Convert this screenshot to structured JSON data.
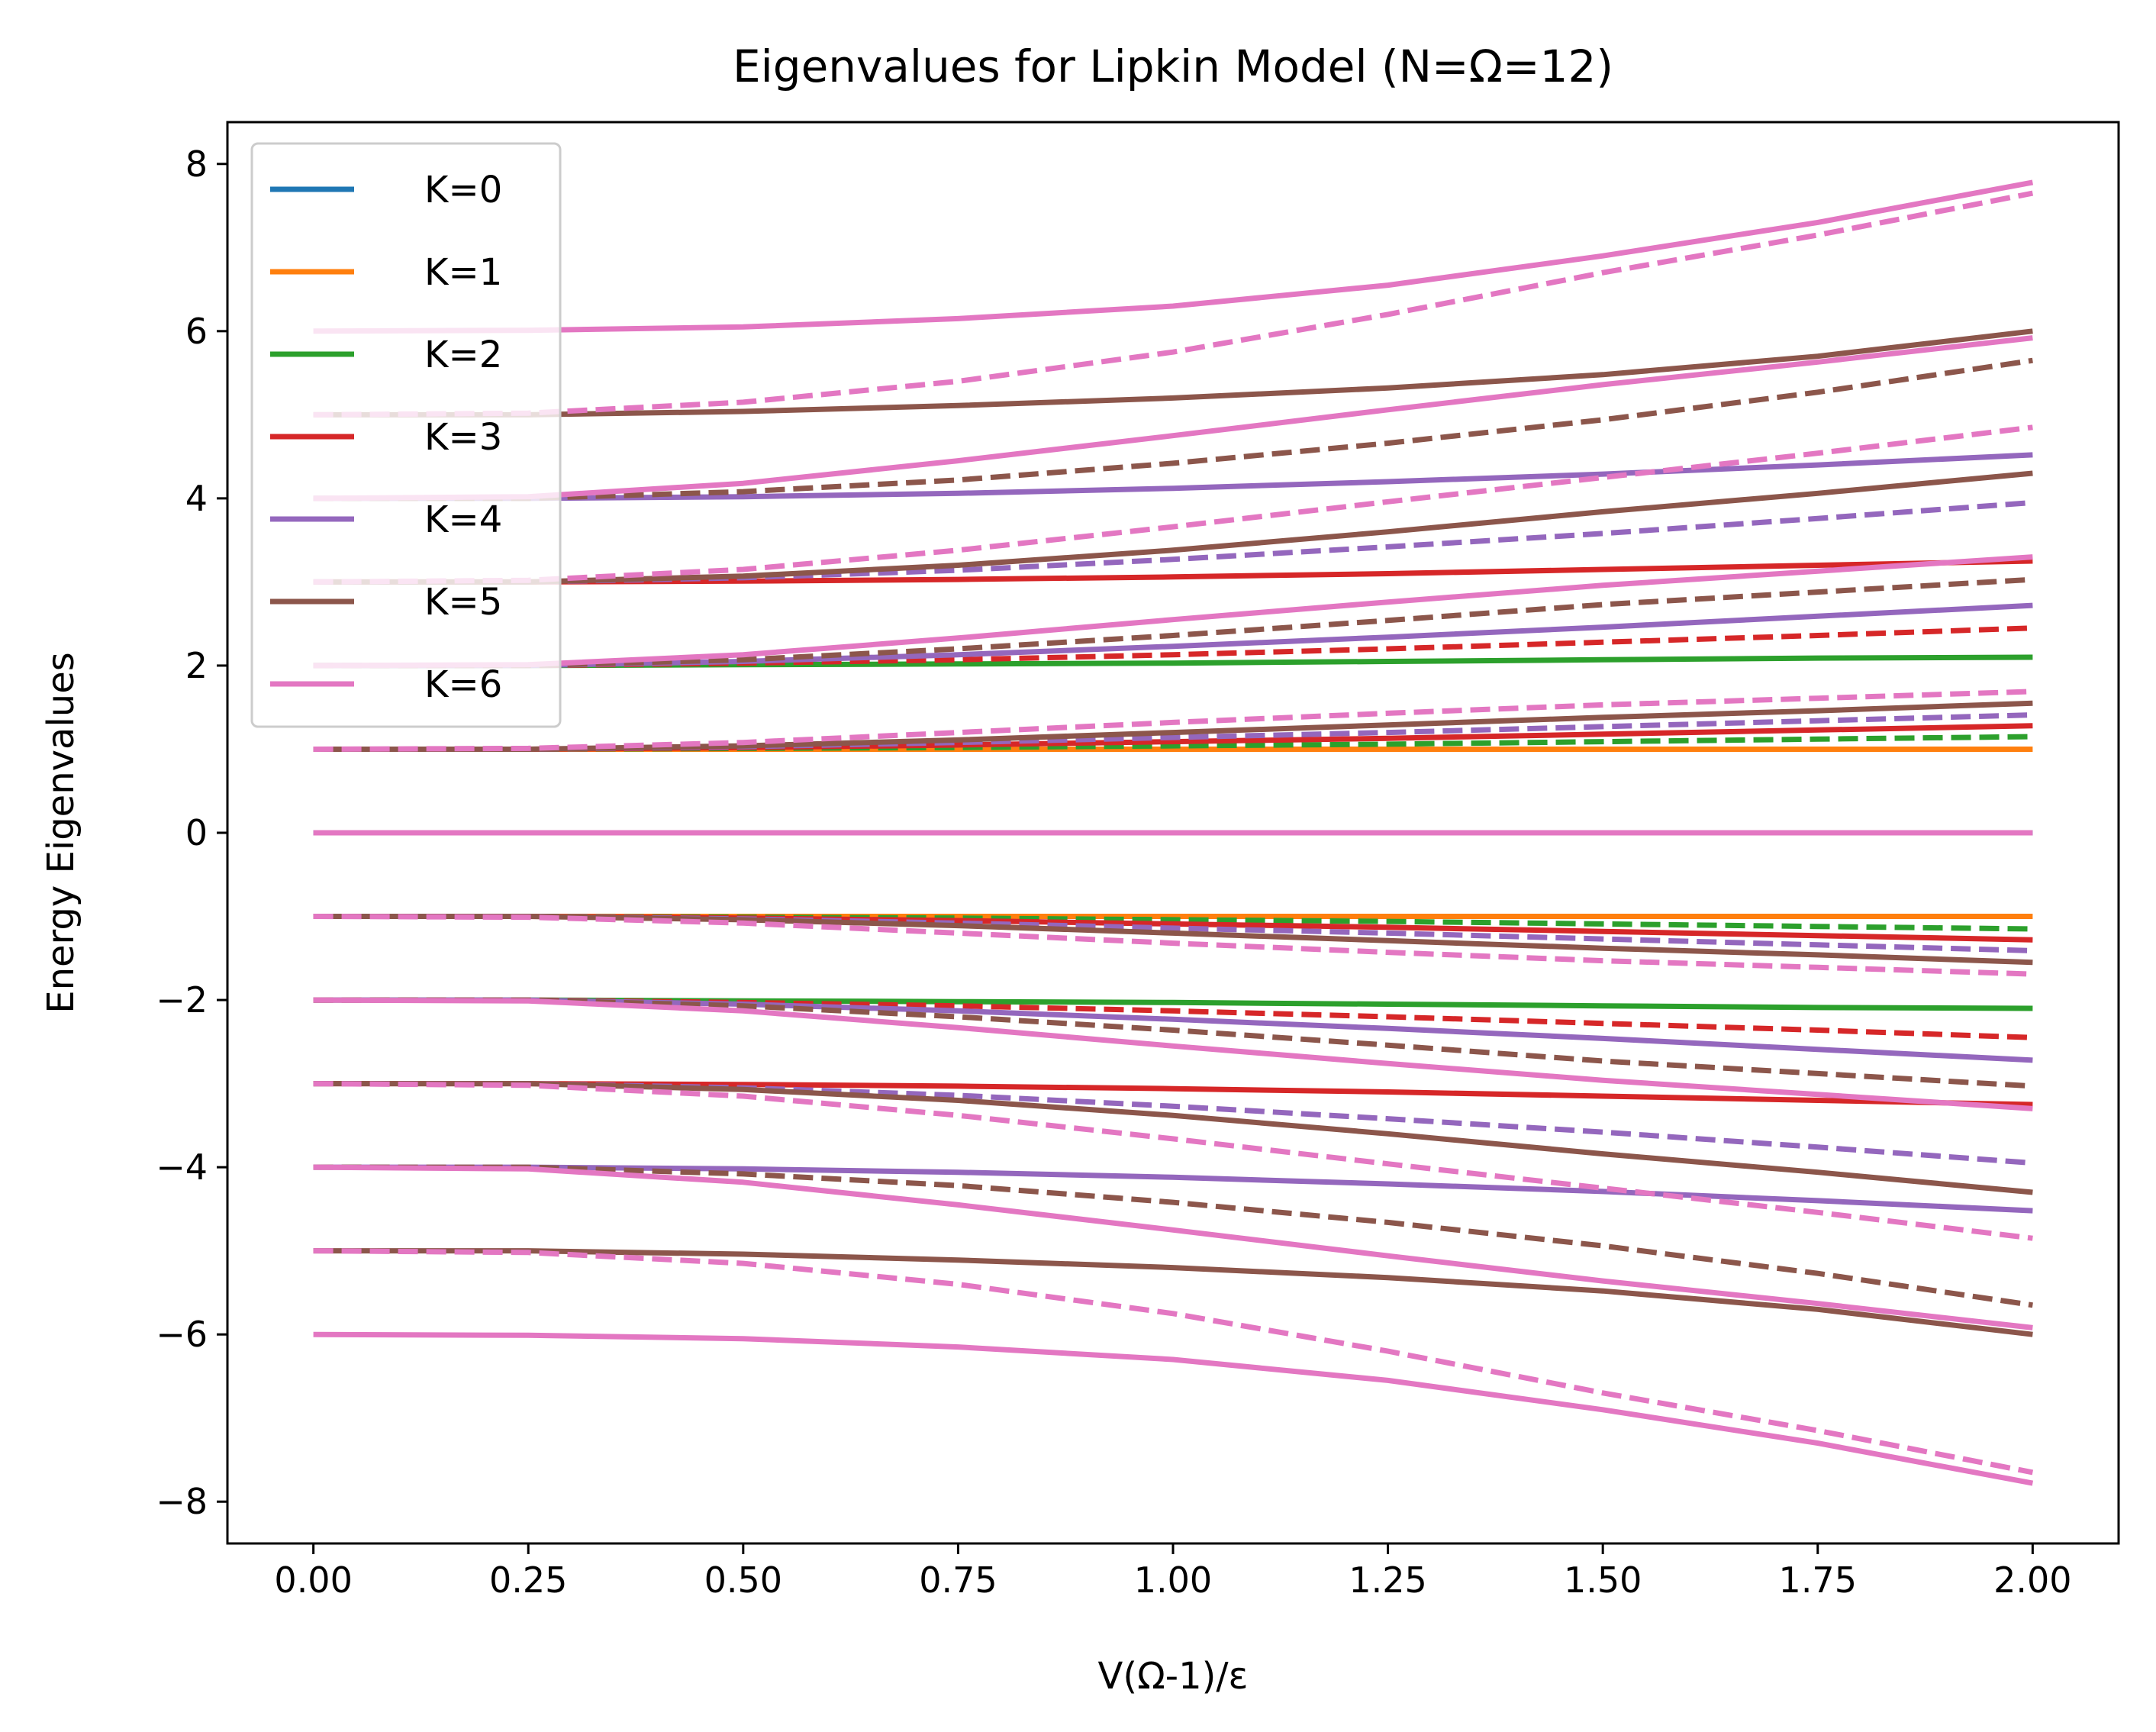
{
  "chart_data": {
    "type": "line",
    "title": "Eigenvalues for Lipkin Model (N=Ω=12)",
    "xlabel": "V(Ω-1)/ε",
    "ylabel": "Energy Eigenvalues",
    "xlim": [
      -0.1,
      2.1
    ],
    "ylim": [
      -8.5,
      8.5
    ],
    "x_ticks": [
      0.0,
      0.25,
      0.5,
      0.75,
      1.0,
      1.25,
      1.5,
      1.75,
      2.0
    ],
    "x_tick_labels": [
      "0.00",
      "0.25",
      "0.50",
      "0.75",
      "1.00",
      "1.25",
      "1.50",
      "1.75",
      "2.00"
    ],
    "y_ticks": [
      -8,
      -6,
      -4,
      -2,
      0,
      2,
      4,
      6,
      8
    ],
    "y_tick_labels": [
      "−8",
      "−6",
      "−4",
      "−2",
      "0",
      "2",
      "4",
      "6",
      "8"
    ],
    "grid": false,
    "legend_position": "upper-left",
    "x": [
      0.0,
      0.25,
      0.5,
      0.75,
      1.0,
      1.25,
      1.5,
      1.75,
      2.0
    ],
    "series": [
      {
        "name": "K=0",
        "color": "#1f77b4",
        "style": "solid",
        "values": [
          0,
          0,
          0,
          0,
          0,
          0,
          0,
          0,
          0
        ]
      },
      {
        "name": "K=1",
        "color": "#ff7f0e",
        "style": "solid",
        "values": [
          1,
          1,
          1,
          1,
          1,
          1,
          1,
          1,
          1
        ]
      },
      {
        "color": "#ff7f0e",
        "style": "solid",
        "values": [
          -1,
          -1,
          -1,
          -1,
          -1,
          -1,
          -1,
          -1,
          -1
        ]
      },
      {
        "name": "K=2",
        "color": "#2ca02c",
        "style": "solid",
        "values": [
          2.0,
          2.0,
          2.01,
          2.02,
          2.03,
          2.05,
          2.07,
          2.09,
          2.1
        ]
      },
      {
        "color": "#2ca02c",
        "style": "dashed",
        "values": [
          1.0,
          1.0,
          1.01,
          1.02,
          1.04,
          1.06,
          1.09,
          1.12,
          1.15
        ]
      },
      {
        "color": "#2ca02c",
        "style": "dashed",
        "values": [
          -1.0,
          -1.0,
          -1.01,
          -1.02,
          -1.04,
          -1.06,
          -1.09,
          -1.12,
          -1.15
        ]
      },
      {
        "color": "#2ca02c",
        "style": "solid",
        "values": [
          -2.0,
          -2.0,
          -2.01,
          -2.02,
          -2.03,
          -2.05,
          -2.07,
          -2.09,
          -2.1
        ]
      },
      {
        "name": "K=3",
        "color": "#d62728",
        "style": "solid",
        "values": [
          3.0,
          3.0,
          3.01,
          3.03,
          3.06,
          3.1,
          3.15,
          3.2,
          3.25
        ]
      },
      {
        "color": "#d62728",
        "style": "dashed",
        "values": [
          2.0,
          2.0,
          2.03,
          2.07,
          2.13,
          2.2,
          2.28,
          2.36,
          2.45
        ]
      },
      {
        "color": "#d62728",
        "style": "solid",
        "values": [
          1.0,
          1.0,
          1.02,
          1.05,
          1.09,
          1.13,
          1.18,
          1.23,
          1.28
        ]
      },
      {
        "color": "#d62728",
        "style": "solid",
        "values": [
          -1.0,
          -1.0,
          -1.02,
          -1.05,
          -1.09,
          -1.13,
          -1.18,
          -1.23,
          -1.28
        ]
      },
      {
        "color": "#d62728",
        "style": "dashed",
        "values": [
          -2.0,
          -2.0,
          -2.03,
          -2.07,
          -2.13,
          -2.2,
          -2.28,
          -2.36,
          -2.45
        ]
      },
      {
        "color": "#d62728",
        "style": "solid",
        "values": [
          -3.0,
          -3.0,
          -3.01,
          -3.03,
          -3.06,
          -3.1,
          -3.15,
          -3.2,
          -3.25
        ]
      },
      {
        "name": "K=4",
        "color": "#9467bd",
        "style": "solid",
        "values": [
          4.0,
          4.0,
          4.02,
          4.06,
          4.12,
          4.2,
          4.29,
          4.4,
          4.52
        ]
      },
      {
        "color": "#9467bd",
        "style": "dashed",
        "values": [
          3.0,
          3.0,
          3.05,
          3.14,
          3.27,
          3.42,
          3.58,
          3.76,
          3.95
        ]
      },
      {
        "color": "#9467bd",
        "style": "solid",
        "values": [
          2.0,
          2.0,
          2.05,
          2.13,
          2.23,
          2.34,
          2.46,
          2.59,
          2.72
        ]
      },
      {
        "color": "#9467bd",
        "style": "dashed",
        "values": [
          1.0,
          1.0,
          1.03,
          1.08,
          1.14,
          1.2,
          1.27,
          1.34,
          1.41
        ]
      },
      {
        "color": "#9467bd",
        "style": "dashed",
        "values": [
          -1.0,
          -1.0,
          -1.03,
          -1.08,
          -1.14,
          -1.2,
          -1.27,
          -1.34,
          -1.41
        ]
      },
      {
        "color": "#9467bd",
        "style": "solid",
        "values": [
          -2.0,
          -2.0,
          -2.05,
          -2.13,
          -2.23,
          -2.34,
          -2.46,
          -2.59,
          -2.72
        ]
      },
      {
        "color": "#9467bd",
        "style": "dashed",
        "values": [
          -3.0,
          -3.0,
          -3.05,
          -3.14,
          -3.27,
          -3.42,
          -3.58,
          -3.76,
          -3.95
        ]
      },
      {
        "color": "#9467bd",
        "style": "solid",
        "values": [
          -4.0,
          -4.0,
          -4.02,
          -4.06,
          -4.12,
          -4.2,
          -4.29,
          -4.4,
          -4.52
        ]
      },
      {
        "name": "K=5",
        "color": "#8c564b",
        "style": "solid",
        "values": [
          5.0,
          5.0,
          5.04,
          5.11,
          5.2,
          5.32,
          5.48,
          5.7,
          6.0
        ]
      },
      {
        "color": "#8c564b",
        "style": "dashed",
        "values": [
          4.0,
          4.0,
          4.08,
          4.22,
          4.42,
          4.66,
          4.94,
          5.27,
          5.65
        ]
      },
      {
        "color": "#8c564b",
        "style": "solid",
        "values": [
          3.0,
          3.0,
          3.07,
          3.2,
          3.38,
          3.6,
          3.84,
          4.06,
          4.3
        ]
      },
      {
        "color": "#8c564b",
        "style": "dashed",
        "values": [
          2.0,
          2.0,
          2.07,
          2.2,
          2.36,
          2.54,
          2.73,
          2.88,
          3.03
        ]
      },
      {
        "color": "#8c564b",
        "style": "solid",
        "values": [
          1.0,
          1.0,
          1.04,
          1.11,
          1.2,
          1.29,
          1.38,
          1.46,
          1.55
        ]
      },
      {
        "color": "#8c564b",
        "style": "solid",
        "values": [
          -1.0,
          -1.0,
          -1.04,
          -1.11,
          -1.2,
          -1.29,
          -1.38,
          -1.46,
          -1.55
        ]
      },
      {
        "color": "#8c564b",
        "style": "dashed",
        "values": [
          -2.0,
          -2.0,
          -2.07,
          -2.2,
          -2.36,
          -2.54,
          -2.73,
          -2.88,
          -3.03
        ]
      },
      {
        "color": "#8c564b",
        "style": "solid",
        "values": [
          -3.0,
          -3.0,
          -3.07,
          -3.2,
          -3.38,
          -3.6,
          -3.84,
          -4.06,
          -4.3
        ]
      },
      {
        "color": "#8c564b",
        "style": "dashed",
        "values": [
          -4.0,
          -4.0,
          -4.08,
          -4.22,
          -4.42,
          -4.66,
          -4.94,
          -5.27,
          -5.65
        ]
      },
      {
        "color": "#8c564b",
        "style": "solid",
        "values": [
          -5.0,
          -5.0,
          -5.04,
          -5.11,
          -5.2,
          -5.32,
          -5.48,
          -5.7,
          -6.0
        ]
      },
      {
        "name": "K=6",
        "color": "#e377c2",
        "style": "solid",
        "values": [
          6.0,
          6.01,
          6.05,
          6.15,
          6.3,
          6.55,
          6.9,
          7.3,
          7.78
        ]
      },
      {
        "color": "#e377c2",
        "style": "dashed",
        "values": [
          5.0,
          5.02,
          5.15,
          5.4,
          5.75,
          6.2,
          6.7,
          7.15,
          7.65
        ]
      },
      {
        "color": "#e377c2",
        "style": "solid",
        "values": [
          4.0,
          4.02,
          4.18,
          4.45,
          4.75,
          5.06,
          5.36,
          5.63,
          5.92
        ]
      },
      {
        "color": "#e377c2",
        "style": "dashed",
        "values": [
          3.0,
          3.02,
          3.15,
          3.38,
          3.66,
          3.96,
          4.25,
          4.54,
          4.85
        ]
      },
      {
        "color": "#e377c2",
        "style": "solid",
        "values": [
          2.0,
          2.01,
          2.13,
          2.33,
          2.55,
          2.76,
          2.96,
          3.13,
          3.3
        ]
      },
      {
        "color": "#e377c2",
        "style": "dashed",
        "values": [
          1.0,
          1.01,
          1.08,
          1.2,
          1.32,
          1.43,
          1.53,
          1.61,
          1.69
        ]
      },
      {
        "color": "#e377c2",
        "style": "solid",
        "values": [
          0,
          0,
          0,
          0,
          0,
          0,
          0,
          0,
          0
        ]
      },
      {
        "color": "#e377c2",
        "style": "dashed",
        "values": [
          -1.0,
          -1.01,
          -1.08,
          -1.2,
          -1.32,
          -1.43,
          -1.53,
          -1.61,
          -1.69
        ]
      },
      {
        "color": "#e377c2",
        "style": "solid",
        "values": [
          -2.0,
          -2.01,
          -2.13,
          -2.33,
          -2.55,
          -2.76,
          -2.96,
          -3.13,
          -3.3
        ]
      },
      {
        "color": "#e377c2",
        "style": "dashed",
        "values": [
          -3.0,
          -3.02,
          -3.15,
          -3.38,
          -3.66,
          -3.96,
          -4.25,
          -4.54,
          -4.85
        ]
      },
      {
        "color": "#e377c2",
        "style": "solid",
        "values": [
          -4.0,
          -4.02,
          -4.18,
          -4.45,
          -4.75,
          -5.06,
          -5.36,
          -5.63,
          -5.92
        ]
      },
      {
        "color": "#e377c2",
        "style": "dashed",
        "values": [
          -5.0,
          -5.02,
          -5.15,
          -5.4,
          -5.75,
          -6.2,
          -6.7,
          -7.15,
          -7.65
        ]
      },
      {
        "color": "#e377c2",
        "style": "solid",
        "values": [
          -6.0,
          -6.01,
          -6.05,
          -6.15,
          -6.3,
          -6.55,
          -6.9,
          -7.3,
          -7.78
        ]
      }
    ]
  }
}
